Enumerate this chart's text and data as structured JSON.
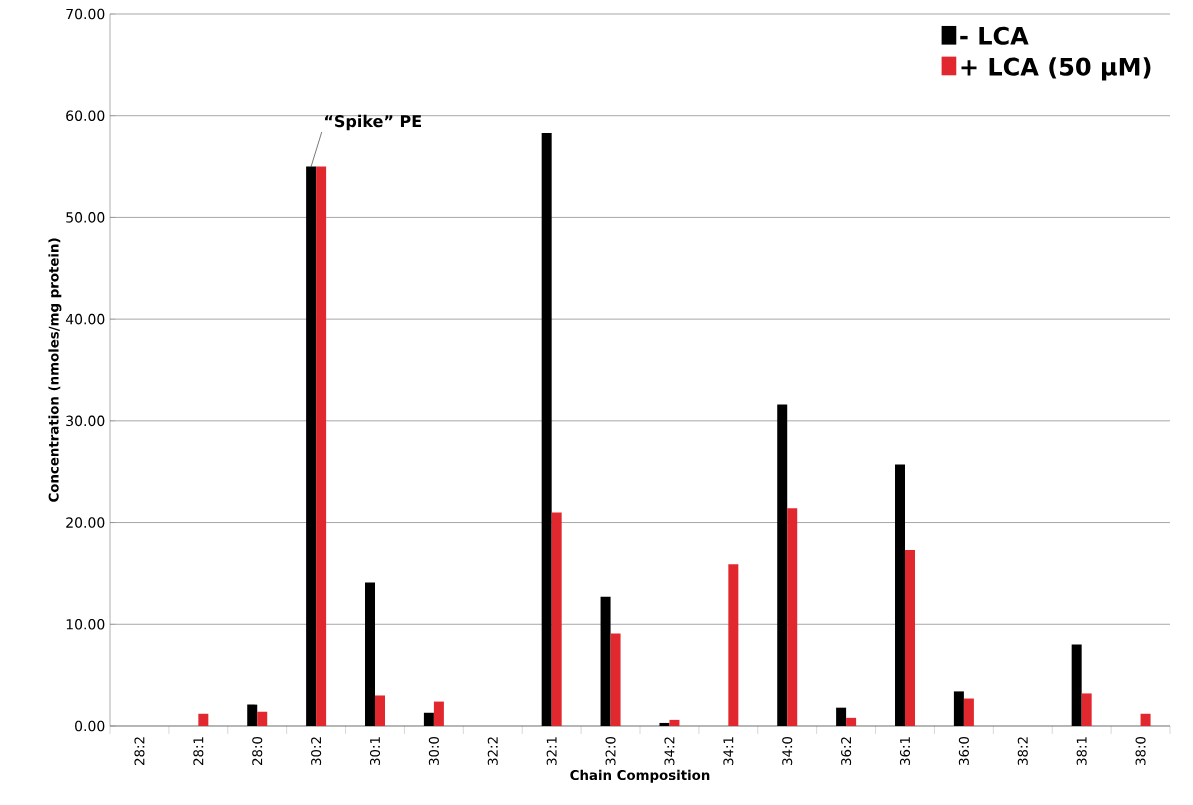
{
  "chart_data": {
    "type": "bar",
    "xlabel": "Chain Composition",
    "ylabel": "Concentration (nmoles/mg protein)",
    "categories": [
      "28:2",
      "28:1",
      "28:0",
      "30:2",
      "30:1",
      "30:0",
      "32:2",
      "32:1",
      "32:0",
      "34:2",
      "34:1",
      "34:0",
      "36:2",
      "36:1",
      "36:0",
      "38:2",
      "38:1",
      "38:0"
    ],
    "series": [
      {
        "name": "- LCA",
        "color": "#000000",
        "values": [
          null,
          null,
          2.1,
          55.0,
          14.1,
          1.3,
          null,
          58.3,
          12.7,
          0.3,
          null,
          31.6,
          1.8,
          25.7,
          3.4,
          null,
          8.0,
          null
        ]
      },
      {
        "name": "+ LCA (50 µM)",
        "color": "#e0282e",
        "values": [
          null,
          1.2,
          1.4,
          55.0,
          3.0,
          2.4,
          null,
          21.0,
          9.1,
          0.6,
          15.9,
          21.4,
          0.8,
          17.3,
          2.7,
          null,
          3.2,
          1.2
        ]
      }
    ],
    "ylim": [
      0,
      70
    ],
    "yticks": [
      {
        "value": 0,
        "label": "0.00"
      },
      {
        "value": 10,
        "label": "10.00"
      },
      {
        "value": 20,
        "label": "20.00"
      },
      {
        "value": 30,
        "label": "30.00"
      },
      {
        "value": 40,
        "label": "40.00"
      },
      {
        "value": 50,
        "label": "50.00"
      },
      {
        "value": 60,
        "label": "60.00"
      },
      {
        "value": 70,
        "label": "70.00"
      }
    ],
    "grid": "y",
    "legend": "top right",
    "annotations": [
      {
        "text": "“Spike” PE",
        "x": "30:2",
        "y": 55.0
      }
    ]
  }
}
